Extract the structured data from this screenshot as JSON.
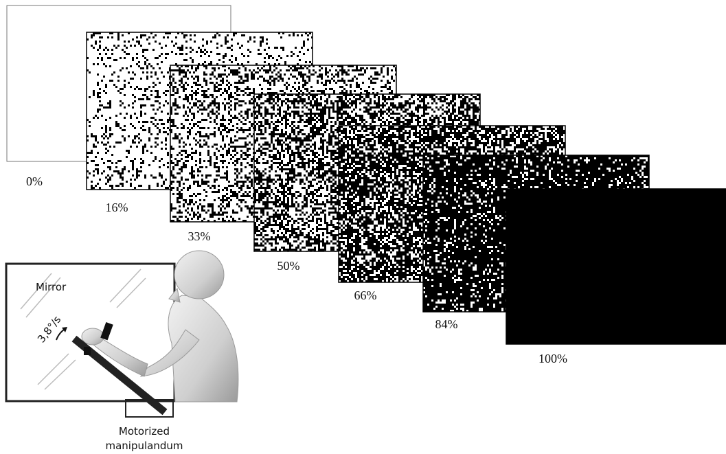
{
  "panels": [
    {
      "label": "0%",
      "density": 0
    },
    {
      "label": "16%",
      "density": 16
    },
    {
      "label": "33%",
      "density": 33
    },
    {
      "label": "50%",
      "density": 50
    },
    {
      "label": "66%",
      "density": 66
    },
    {
      "label": "84%",
      "density": 84
    },
    {
      "label": "100%",
      "density": 100
    }
  ],
  "illustration": {
    "mirror": "Mirror",
    "speed": "3,8°/s",
    "device": [
      "Motorized",
      "manipulandum"
    ]
  }
}
